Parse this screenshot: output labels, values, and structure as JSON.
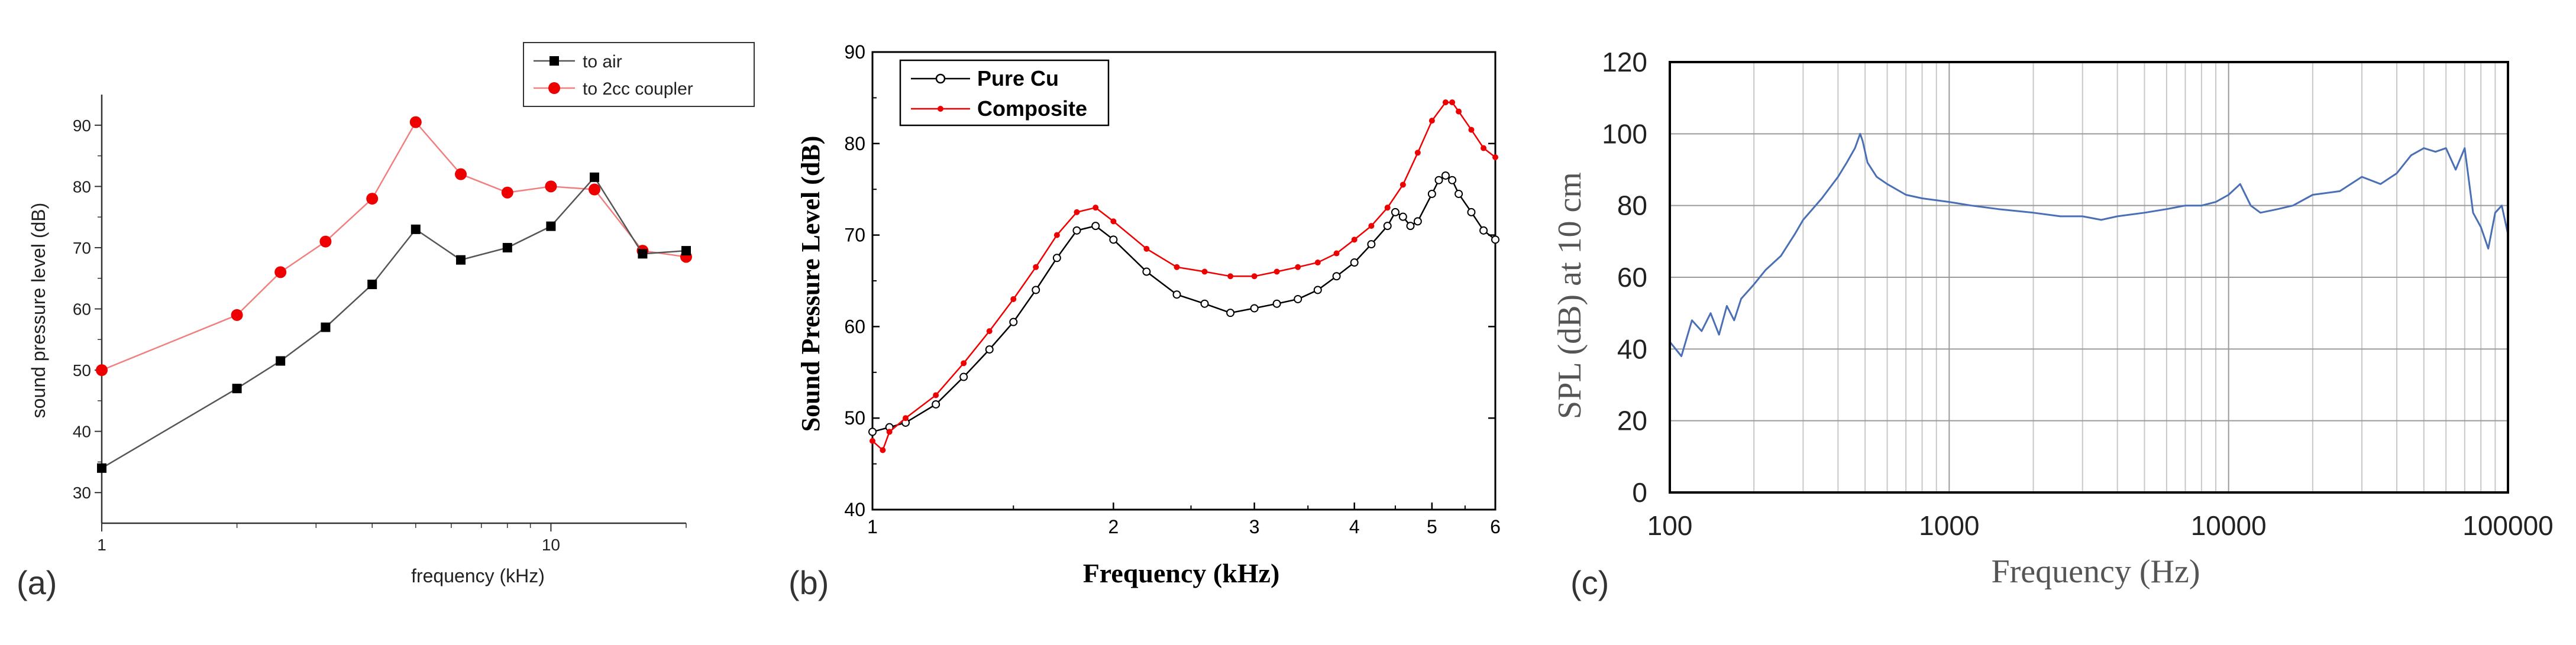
{
  "panels": [
    {
      "id": "a",
      "panel_label": "(a)",
      "style": "origin"
    },
    {
      "id": "b",
      "panel_label": "(b)",
      "style": "bold"
    },
    {
      "id": "c",
      "panel_label": "(c)",
      "style": "serif"
    }
  ],
  "chart_data": [
    {
      "type": "line",
      "panel": "(a)",
      "title": "",
      "xlabel": "frequency (kHz)",
      "ylabel": "sound pressure level (dB)",
      "xscale": "log",
      "xlim": [
        1,
        20
      ],
      "ylim": [
        25,
        95
      ],
      "xticks": [
        1,
        10
      ],
      "xtick_labels": [
        "1",
        "10"
      ],
      "yticks": [
        30,
        40,
        50,
        60,
        70,
        80,
        90
      ],
      "ytick_labels": [
        "30",
        "40",
        "50",
        "60",
        "70",
        "80",
        "90"
      ],
      "grid": false,
      "legend_position": "top-right",
      "series": [
        {
          "name": "to air",
          "color": "#000000",
          "line_color": "#555555",
          "marker": "square",
          "x": [
            1,
            2,
            2.5,
            3.15,
            4,
            5,
            6.3,
            8,
            10,
            12.5,
            16,
            20
          ],
          "values": [
            34,
            47,
            51.5,
            57,
            64,
            73,
            68,
            70,
            73.5,
            81.5,
            69,
            69.5
          ]
        },
        {
          "name": "to 2cc coupler",
          "color": "#ee0000",
          "line_color": "#f08080",
          "marker": "circle",
          "x": [
            1,
            2,
            2.5,
            3.15,
            4,
            5,
            6.3,
            8,
            10,
            12.5,
            16,
            20
          ],
          "values": [
            50,
            59,
            66,
            71,
            78,
            90.5,
            82,
            79,
            80,
            79.5,
            69.5,
            68.5
          ]
        }
      ]
    },
    {
      "type": "line",
      "panel": "(b)",
      "title": "",
      "xlabel": "Frequency (kHz)",
      "ylabel": "Sound Pressure Level (dB)",
      "xscale": "log",
      "xlim": [
        1,
        6
      ],
      "ylim": [
        40,
        90
      ],
      "xticks": [
        1,
        2,
        3,
        4,
        5,
        6
      ],
      "xtick_labels": [
        "1",
        "2",
        "3",
        "4",
        "5",
        "6"
      ],
      "yticks": [
        40,
        50,
        60,
        70,
        80,
        90
      ],
      "ytick_labels": [
        "40",
        "50",
        "60",
        "70",
        "80",
        "90"
      ],
      "grid": false,
      "legend_position": "top-left",
      "series": [
        {
          "name": "Pure Cu",
          "color": "#000000",
          "marker": "open-circle",
          "x": [
            1.0,
            1.05,
            1.1,
            1.2,
            1.3,
            1.4,
            1.5,
            1.6,
            1.7,
            1.8,
            1.9,
            2.0,
            2.2,
            2.4,
            2.6,
            2.8,
            3.0,
            3.2,
            3.4,
            3.6,
            3.8,
            4.0,
            4.2,
            4.4,
            4.5,
            4.6,
            4.7,
            4.8,
            5.0,
            5.1,
            5.2,
            5.3,
            5.4,
            5.6,
            5.8,
            6.0
          ],
          "values": [
            48.5,
            49.0,
            49.5,
            51.5,
            54.5,
            57.5,
            60.5,
            64.0,
            67.5,
            70.5,
            71.0,
            69.5,
            66.0,
            63.5,
            62.5,
            61.5,
            62.0,
            62.5,
            63.0,
            64.0,
            65.5,
            67.0,
            69.0,
            71.0,
            72.5,
            72.0,
            71.0,
            71.5,
            74.5,
            76.0,
            76.5,
            76.0,
            74.5,
            72.5,
            70.5,
            69.5
          ]
        },
        {
          "name": "Composite",
          "color": "#ee0000",
          "marker": "filled-dot",
          "x": [
            1.0,
            1.03,
            1.05,
            1.1,
            1.2,
            1.3,
            1.4,
            1.5,
            1.6,
            1.7,
            1.8,
            1.9,
            2.0,
            2.2,
            2.4,
            2.6,
            2.8,
            3.0,
            3.2,
            3.4,
            3.6,
            3.8,
            4.0,
            4.2,
            4.4,
            4.6,
            4.8,
            5.0,
            5.2,
            5.3,
            5.4,
            5.6,
            5.8,
            6.0
          ],
          "values": [
            47.5,
            46.5,
            48.5,
            50.0,
            52.5,
            56.0,
            59.5,
            63.0,
            66.5,
            70.0,
            72.5,
            73.0,
            71.5,
            68.5,
            66.5,
            66.0,
            65.5,
            65.5,
            66.0,
            66.5,
            67.0,
            68.0,
            69.5,
            71.0,
            73.0,
            75.5,
            79.0,
            82.5,
            84.5,
            84.5,
            83.5,
            81.5,
            79.5,
            78.5
          ]
        }
      ]
    },
    {
      "type": "line",
      "panel": "(c)",
      "title": "",
      "xlabel": "Frequency (Hz)",
      "ylabel": "SPL (dB) at 10 cm",
      "xscale": "log",
      "xlim": [
        100,
        100000
      ],
      "ylim": [
        0,
        120
      ],
      "xticks": [
        100,
        1000,
        10000,
        100000
      ],
      "xtick_labels": [
        "100",
        "1000",
        "10000",
        "100000"
      ],
      "yticks": [
        0,
        20,
        40,
        60,
        80,
        100,
        120
      ],
      "ytick_labels": [
        "0",
        "20",
        "40",
        "60",
        "80",
        "100",
        "120"
      ],
      "grid": true,
      "series": [
        {
          "name": "SPL",
          "color": "#4a6fb5",
          "x": [
            100,
            110,
            120,
            130,
            140,
            150,
            160,
            170,
            180,
            200,
            220,
            250,
            280,
            300,
            350,
            400,
            430,
            460,
            480,
            490,
            510,
            550,
            600,
            700,
            800,
            1000,
            1200,
            1500,
            2000,
            2500,
            3000,
            3500,
            4000,
            5000,
            6000,
            7000,
            8000,
            9000,
            10000,
            11000,
            12000,
            13000,
            15000,
            17000,
            20000,
            25000,
            30000,
            35000,
            40000,
            45000,
            50000,
            55000,
            60000,
            65000,
            70000,
            75000,
            80000,
            85000,
            90000,
            95000,
            100000
          ],
          "values": [
            42,
            38,
            48,
            45,
            50,
            44,
            52,
            48,
            54,
            58,
            62,
            66,
            72,
            76,
            82,
            88,
            92,
            96,
            100,
            98,
            92,
            88,
            86,
            83,
            82,
            81,
            80,
            79,
            78,
            77,
            77,
            76,
            77,
            78,
            79,
            80,
            80,
            81,
            83,
            86,
            80,
            78,
            79,
            80,
            83,
            84,
            88,
            86,
            89,
            94,
            96,
            95,
            96,
            90,
            96,
            78,
            74,
            68,
            78,
            80,
            72
          ]
        }
      ]
    }
  ]
}
